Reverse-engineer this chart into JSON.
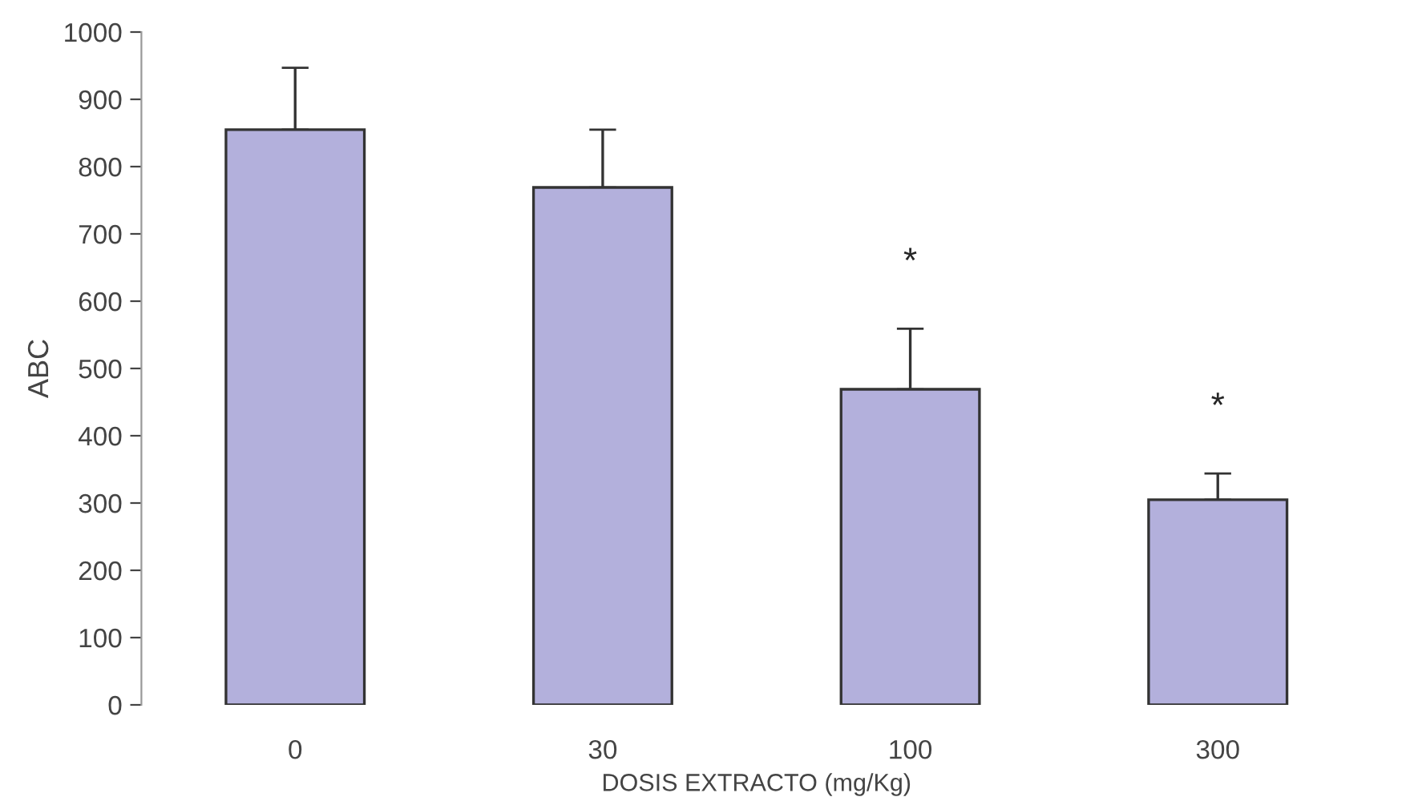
{
  "chart_data": {
    "type": "bar",
    "xlabel": "DOSIS EXTRACTO (mg/Kg)",
    "ylabel": "ABC",
    "categories": [
      "0",
      "30",
      "100",
      "300"
    ],
    "values": [
      855,
      769,
      469,
      305
    ],
    "errors": [
      [
        855,
        947
      ],
      [
        769,
        855
      ],
      [
        469,
        559
      ],
      [
        305,
        344
      ]
    ],
    "color": "#b3b0dc",
    "ylim": [
      0,
      1000
    ],
    "yticks": [
      0,
      100,
      200,
      300,
      400,
      500,
      600,
      700,
      800,
      900,
      1000
    ],
    "annotations": [
      "*",
      "*"
    ],
    "grid": false,
    "legend": false
  }
}
